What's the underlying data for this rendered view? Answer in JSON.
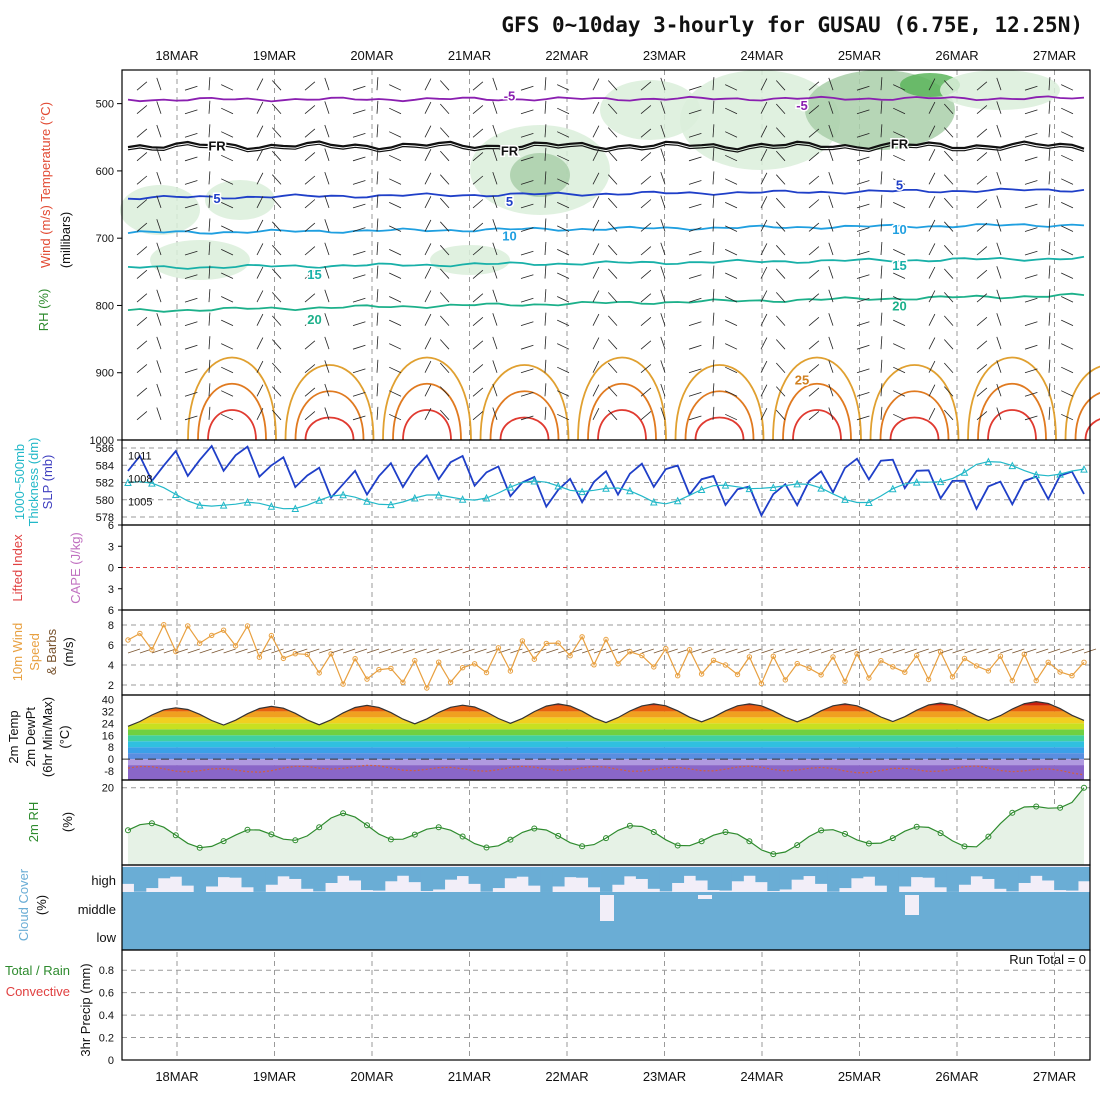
{
  "title": "GFS 0~10day 3-hourly for GUSAU (6.75E, 12.25N)",
  "dates": [
    "18MAR",
    "19MAR",
    "20MAR",
    "21MAR",
    "22MAR",
    "23MAR",
    "24MAR",
    "25MAR",
    "26MAR",
    "27MAR"
  ],
  "colors": {
    "panel_border": "#000000",
    "grid": "#9a9a9a",
    "rh_light": "#dbeedb",
    "rh_mid": "#a9cfa9",
    "rh_dark": "#5cb55c",
    "slp": "#1f3fc8",
    "thickness": "#22b8c8",
    "wind10": "#e8a040",
    "barb10": "#7a5530",
    "rh2m": "#2e8b2e",
    "cloud": "#6aadd5",
    "cloud_bg": "#f2eef8",
    "cape_line": "#e04040"
  },
  "labels": {
    "panel1": [
      {
        "text": "Wind (m/s)",
        "color": "#111111"
      },
      {
        "text": "Temperature (°C)",
        "color": "#e24a33"
      },
      {
        "text": "RH (%)",
        "color": "#2e8b2e"
      },
      {
        "text": "(millibars)",
        "color": "#111111"
      }
    ],
    "panel2": [
      {
        "text": "1000~500mb",
        "color": "#22b8c8"
      },
      {
        "text": "Thickness (dm)",
        "color": "#22b8c8"
      },
      {
        "text": "SLP (mb)",
        "color": "#4040c0"
      }
    ],
    "panel3": [
      {
        "text": "Lifted Index",
        "color": "#e04040"
      },
      {
        "text": "CAPE (J/kg)",
        "color": "#c070c0"
      }
    ],
    "panel4": [
      {
        "text": "10m Wind",
        "color": "#e8a040"
      },
      {
        "text": "Speed",
        "color": "#e8a040"
      },
      {
        "text": "& Barbs",
        "color": "#7a5530"
      },
      {
        "text": "(m/s)",
        "color": "#111111"
      }
    ],
    "panel5": [
      {
        "text": "2m Temp",
        "color": "#111111"
      },
      {
        "text": "2m DewPt",
        "color": "#111111"
      },
      {
        "text": "(6hr Min/Max)",
        "color": "#111111"
      },
      {
        "text": "(°C)",
        "color": "#111111"
      }
    ],
    "panel6": [
      {
        "text": "2m RH",
        "color": "#2e8b2e"
      },
      {
        "text": "(%)",
        "color": "#111111"
      }
    ],
    "panel7": [
      {
        "text": "Cloud Cover",
        "color": "#6aadd5"
      },
      {
        "text": "(%)",
        "color": "#111111"
      }
    ],
    "panel8": [
      {
        "text": "Total / Rain",
        "color": "#2e8b2e"
      },
      {
        "text": "Convective",
        "color": "#e04040"
      },
      {
        "text": "3hr Precip (mm)",
        "color": "#111111"
      }
    ],
    "run_total": "Run Total = 0",
    "cloud_levels": [
      "high",
      "middle",
      "low"
    ]
  },
  "chart_data": [
    {
      "type": "heatmap",
      "panel": "pressure-cross-section",
      "ylabel": "(millibars)",
      "y_ticks": [
        500,
        600,
        700,
        800,
        900,
        1000
      ],
      "ylim": [
        450,
        1000
      ],
      "isotherm_labels": [
        {
          "text": "-5",
          "date": "21MAR",
          "p": 488
        },
        {
          "text": "-5",
          "date": "24MAR",
          "p": 502
        },
        {
          "text": "FR",
          "date": "18MAR",
          "p": 562
        },
        {
          "text": "FR",
          "date": "21MAR",
          "p": 570
        },
        {
          "text": "FR",
          "date": "25MAR",
          "p": 559
        },
        {
          "text": "5",
          "date": "18MAR",
          "p": 640
        },
        {
          "text": "5",
          "date": "21MAR",
          "p": 645
        },
        {
          "text": "5",
          "date": "25MAR",
          "p": 620
        },
        {
          "text": "10",
          "date": "21MAR",
          "p": 696
        },
        {
          "text": "10",
          "date": "25MAR",
          "p": 686
        },
        {
          "text": "15",
          "date": "19MAR",
          "p": 753
        },
        {
          "text": "15",
          "date": "25MAR",
          "p": 740
        },
        {
          "text": "20",
          "date": "19MAR",
          "p": 820
        },
        {
          "text": "20",
          "date": "25MAR",
          "p": 800
        },
        {
          "text": "25",
          "date": "24MAR",
          "p": 910
        }
      ],
      "isotherms": [
        {
          "label": "-5",
          "color": "#8a1fb0",
          "start": 494,
          "end": 492
        },
        {
          "label": "FR",
          "color": "#111111",
          "start": 562,
          "end": 562
        },
        {
          "label": "5",
          "color": "#1f3fc8",
          "start": 640,
          "end": 628
        },
        {
          "label": "10",
          "color": "#1f9fe0",
          "start": 692,
          "end": 680
        },
        {
          "label": "15",
          "color": "#18b0a8",
          "start": 744,
          "end": 730
        },
        {
          "label": "20",
          "color": "#1cb08a",
          "start": 808,
          "end": 785
        }
      ]
    },
    {
      "type": "line",
      "panel": "slp-thickness",
      "x": [
        "18MAR",
        "19MAR",
        "20MAR",
        "21MAR",
        "22MAR",
        "23MAR",
        "24MAR",
        "25MAR",
        "26MAR",
        "27MAR"
      ],
      "series": [
        {
          "name": "SLP (mb)",
          "values": [
            1009,
            1011,
            1007,
            1010,
            1006,
            1009,
            1005,
            1010,
            1006,
            1008
          ]
        },
        {
          "name": "1000~500mb Thickness (dm)",
          "values": [
            582,
            579,
            580,
            580,
            582,
            580,
            582,
            580,
            584,
            583
          ]
        }
      ],
      "left_ticks": [
        578,
        580,
        582,
        584,
        586
      ],
      "right_ticks": [
        1005,
        1008,
        1011
      ]
    },
    {
      "type": "line",
      "panel": "lifted-index-cape",
      "y_ticks": [
        6,
        3,
        0,
        -3,
        -6
      ],
      "ylim": [
        -6,
        6
      ],
      "series": [
        {
          "name": "Lifted Index",
          "values": [
            0,
            0,
            0,
            0,
            0,
            0,
            0,
            0,
            0,
            0
          ]
        }
      ]
    },
    {
      "type": "line",
      "panel": "10m-wind",
      "ylabel": "(m/s)",
      "y_ticks": [
        2,
        4,
        6,
        8
      ],
      "ylim": [
        1,
        9.5
      ],
      "x": [
        "18MAR",
        "19MAR",
        "20MAR",
        "21MAR",
        "22MAR",
        "23MAR",
        "24MAR",
        "25MAR",
        "26MAR",
        "27MAR"
      ],
      "series": [
        {
          "name": "10m Wind Speed",
          "values": [
            6.5,
            7.0,
            3.5,
            3.0,
            6.0,
            4.5,
            3.5,
            3.8,
            4.0,
            3.3
          ]
        }
      ]
    },
    {
      "type": "area",
      "panel": "2m-temp",
      "ylabel": "(°C)",
      "y_ticks": [
        -8,
        0,
        8,
        16,
        24,
        32,
        40
      ],
      "ylim": [
        -14,
        43
      ],
      "series": [
        {
          "name": "2m Temp Max",
          "values": [
            34,
            35,
            36,
            36,
            37,
            37,
            37,
            37,
            38,
            39
          ]
        },
        {
          "name": "2m Temp Min",
          "values": [
            22,
            23,
            23,
            24,
            24,
            25,
            25,
            25,
            26,
            26
          ]
        },
        {
          "name": "2m DewPt",
          "values": [
            -6,
            -8,
            -5,
            -7,
            -6,
            -7,
            -6,
            -8,
            -6,
            -9
          ]
        }
      ]
    },
    {
      "type": "line",
      "panel": "2m-rh",
      "ylabel": "(%)",
      "y_ticks": [
        20
      ],
      "ylim": [
        0,
        22
      ],
      "x": [
        "18MAR",
        "19MAR",
        "20MAR",
        "21MAR",
        "22MAR",
        "23MAR",
        "24MAR",
        "25MAR",
        "26MAR",
        "27MAR"
      ],
      "series": [
        {
          "name": "2m RH",
          "values": [
            9,
            6,
            11,
            7,
            7,
            8,
            5,
            8,
            7,
            20
          ]
        }
      ]
    },
    {
      "type": "bar",
      "panel": "cloud-cover",
      "ylabel": "(%)",
      "categories": [
        "high",
        "middle",
        "low"
      ],
      "values": [
        90,
        5,
        0
      ]
    },
    {
      "type": "bar",
      "panel": "precip",
      "ylabel": "3hr Precip (mm)",
      "y_ticks": [
        0,
        0.2,
        0.4,
        0.6,
        0.8
      ],
      "ylim": [
        0,
        0.98
      ],
      "values": [
        0,
        0,
        0,
        0,
        0,
        0,
        0,
        0,
        0,
        0
      ]
    }
  ]
}
